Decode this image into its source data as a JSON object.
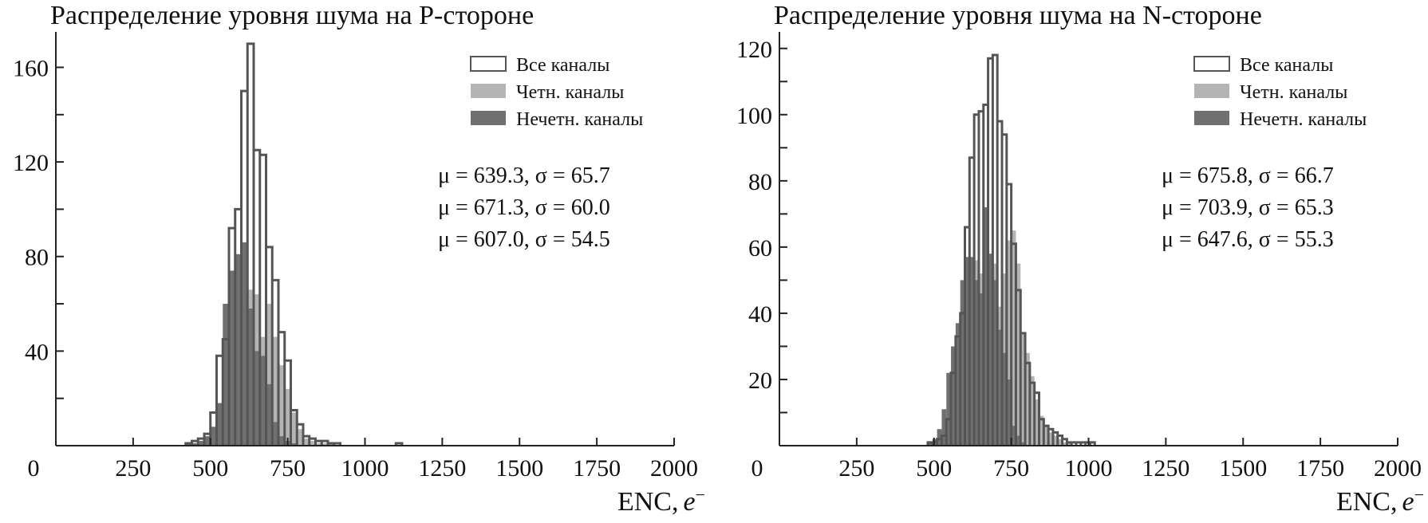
{
  "chart_data": [
    {
      "type": "histogram",
      "title": "Распределение уровня шума на P-стороне",
      "xlabel": "ENC,",
      "xlabel_italic": "e",
      "xlabel_sup": "−",
      "xlim": [
        0,
        2000
      ],
      "ylim": [
        0,
        175
      ],
      "xticks": [
        0,
        250,
        500,
        750,
        1000,
        1250,
        1500,
        1750,
        2000
      ],
      "xtick_labels": [
        "0",
        "250",
        "500",
        "750",
        "1000",
        "1250",
        "1500",
        "1750",
        "2000"
      ],
      "yticks": [
        20,
        40,
        60,
        80,
        100,
        120,
        140,
        160
      ],
      "ytick_labels": [
        "",
        "40",
        "",
        "80",
        "",
        "120",
        "",
        "160"
      ],
      "bin_width": 20,
      "legend": {
        "position": "top-right",
        "entries": [
          "Все каналы",
          "Четн. каналы",
          "Нечетн. каналы"
        ]
      },
      "stats": [
        "μ = 639.3, σ = 65.7",
        "μ = 671.3, σ = 60.0",
        "μ = 607.0, σ = 54.5"
      ],
      "series": [
        {
          "name": "Все каналы",
          "style": "outline",
          "color": "#555555",
          "x": [
            420,
            440,
            460,
            480,
            500,
            520,
            540,
            560,
            580,
            600,
            620,
            640,
            660,
            680,
            700,
            720,
            740,
            760,
            780,
            800,
            820,
            840,
            860,
            880,
            900,
            1100
          ],
          "values": [
            1,
            2,
            3,
            5,
            14,
            38,
            45,
            92,
            100,
            150,
            170,
            125,
            123,
            84,
            70,
            48,
            36,
            15,
            9,
            4,
            3,
            2,
            2,
            1,
            1,
            1
          ]
        },
        {
          "name": "Четн. каналы",
          "style": "fill",
          "color": "#b4b4b4",
          "x": [
            440,
            460,
            480,
            500,
            520,
            540,
            560,
            580,
            600,
            620,
            640,
            660,
            680,
            700,
            720,
            740,
            760,
            780,
            800,
            820,
            840,
            860,
            880
          ],
          "values": [
            1,
            1,
            2,
            3,
            10,
            25,
            50,
            62,
            72,
            66,
            64,
            46,
            60,
            46,
            34,
            24,
            14,
            7,
            3,
            2,
            1,
            1,
            1
          ]
        },
        {
          "name": "Нечетн. каналы",
          "style": "fill",
          "color": "#707070",
          "x": [
            420,
            440,
            460,
            480,
            500,
            520,
            540,
            560,
            580,
            600,
            620,
            640,
            660,
            680,
            700,
            720,
            740,
            760
          ],
          "values": [
            1,
            1,
            2,
            4,
            8,
            18,
            60,
            74,
            81,
            86,
            58,
            40,
            38,
            26,
            10,
            4,
            2,
            1
          ]
        }
      ]
    },
    {
      "type": "histogram",
      "title": "Распределение уровня шума на N-стороне",
      "xlabel": "ENC,",
      "xlabel_italic": "e",
      "xlabel_sup": "−",
      "xlim": [
        0,
        2000
      ],
      "ylim": [
        0,
        125
      ],
      "xticks": [
        0,
        250,
        500,
        750,
        1000,
        1250,
        1500,
        1750,
        2000
      ],
      "xtick_labels": [
        "0",
        "250",
        "500",
        "750",
        "1000",
        "1250",
        "1500",
        "1750",
        "2000"
      ],
      "yticks": [
        10,
        20,
        30,
        40,
        50,
        60,
        70,
        80,
        90,
        100,
        110,
        120
      ],
      "ytick_labels": [
        "",
        "20",
        "",
        "40",
        "",
        "60",
        "",
        "80",
        "",
        "100",
        "",
        "120"
      ],
      "bin_width": 15,
      "legend": {
        "position": "top-right",
        "entries": [
          "Все каналы",
          "Четн. каналы",
          "Нечетн. каналы"
        ]
      },
      "stats": [
        "μ = 675.8, σ = 66.7",
        "μ = 703.9, σ = 65.3",
        "μ = 647.6, σ = 55.3"
      ],
      "series": [
        {
          "name": "Все каналы",
          "style": "outline",
          "color": "#555555",
          "x": [
            480,
            495,
            510,
            525,
            540,
            555,
            570,
            585,
            600,
            615,
            630,
            645,
            660,
            675,
            690,
            705,
            720,
            735,
            750,
            765,
            780,
            795,
            810,
            825,
            840,
            855,
            870,
            885,
            900,
            915,
            930,
            945,
            960,
            975,
            990,
            1005
          ],
          "values": [
            1,
            1,
            2,
            3,
            8,
            22,
            33,
            40,
            66,
            87,
            100,
            101,
            103,
            117,
            118,
            98,
            94,
            79,
            61,
            47,
            34,
            25,
            19,
            16,
            8,
            6,
            5,
            4,
            3,
            2,
            1,
            1,
            1,
            1,
            1,
            1
          ]
        },
        {
          "name": "Четн. каналы",
          "style": "fill",
          "color": "#b4b4b4",
          "x": [
            480,
            495,
            510,
            525,
            540,
            555,
            570,
            585,
            600,
            615,
            630,
            645,
            660,
            675,
            690,
            705,
            720,
            735,
            750,
            765,
            780,
            795,
            810,
            825,
            840,
            855,
            870,
            885,
            900,
            915,
            930
          ],
          "values": [
            1,
            1,
            2,
            3,
            5,
            8,
            16,
            26,
            40,
            52,
            56,
            52,
            56,
            55,
            55,
            42,
            52,
            62,
            65,
            55,
            34,
            28,
            21,
            14,
            9,
            6,
            4,
            3,
            2,
            1,
            1
          ]
        },
        {
          "name": "Нечетн. каналы",
          "style": "fill",
          "color": "#707070",
          "x": [
            480,
            495,
            510,
            525,
            540,
            555,
            570,
            585,
            600,
            615,
            630,
            645,
            660,
            675,
            690,
            705,
            720,
            735,
            750,
            765,
            780
          ],
          "values": [
            1,
            2,
            5,
            11,
            22,
            30,
            37,
            50,
            57,
            57,
            50,
            46,
            72,
            58,
            50,
            35,
            28,
            20,
            6,
            3,
            1
          ]
        }
      ]
    }
  ]
}
